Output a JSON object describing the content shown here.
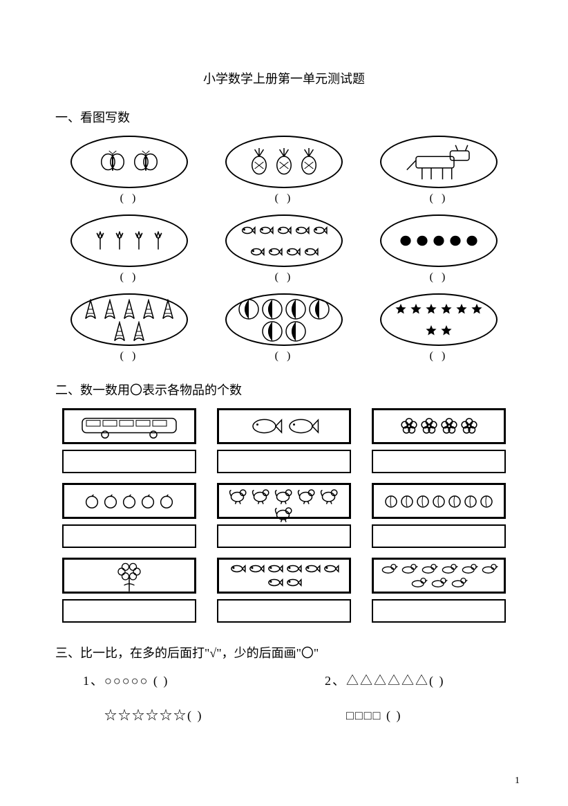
{
  "title": "小学数学上册第一单元测试题",
  "sections": {
    "s1": {
      "title": "一、看图写数",
      "items": [
        {
          "icon": "butterfly",
          "count": 2
        },
        {
          "icon": "pineapple",
          "count": 3
        },
        {
          "icon": "donkey",
          "count": 1
        },
        {
          "icon": "tulip",
          "count": 4
        },
        {
          "icon": "fish-group",
          "count": 9
        },
        {
          "icon": "bean",
          "count": 5
        },
        {
          "icon": "corn",
          "count": 7
        },
        {
          "icon": "ball",
          "count": 6
        },
        {
          "icon": "star",
          "count": 8
        }
      ],
      "blank": "(     )"
    },
    "s2": {
      "title": "二、数一数用〇表示各物品的个数",
      "items": [
        {
          "icon": "bus",
          "count": 1
        },
        {
          "icon": "fish",
          "count": 2
        },
        {
          "icon": "flower",
          "count": 4
        },
        {
          "icon": "apple",
          "count": 5
        },
        {
          "icon": "rooster",
          "count": 6
        },
        {
          "icon": "peach",
          "count": 7
        },
        {
          "icon": "balloons",
          "count": 1
        },
        {
          "icon": "smallfish",
          "count": 8
        },
        {
          "icon": "duck",
          "count": 9
        }
      ]
    },
    "s3": {
      "title": "三、比一比，在多的后面打\"√\"，少的后面画\"〇\"",
      "q1_label": "1、",
      "q1_a": "○○○○○ (     )",
      "q1_b": "☆☆☆☆☆☆(     )",
      "q2_label": "2、",
      "q2_a": "△△△△△△(     )",
      "q2_b": "□□□□  (     )"
    }
  },
  "page_number": "1",
  "colors": {
    "ink": "#000000",
    "bg": "#ffffff"
  }
}
